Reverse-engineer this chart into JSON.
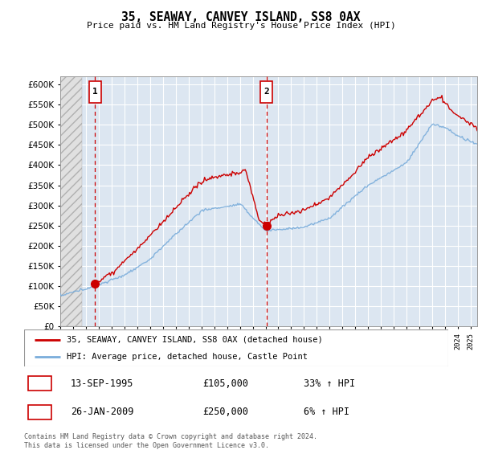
{
  "title": "35, SEAWAY, CANVEY ISLAND, SS8 0AX",
  "subtitle": "Price paid vs. HM Land Registry's House Price Index (HPI)",
  "red_label": "35, SEAWAY, CANVEY ISLAND, SS8 0AX (detached house)",
  "blue_label": "HPI: Average price, detached house, Castle Point",
  "annotation1_date": "13-SEP-1995",
  "annotation1_price": "£105,000",
  "annotation1_hpi": "33% ↑ HPI",
  "annotation2_date": "26-JAN-2009",
  "annotation2_price": "£250,000",
  "annotation2_hpi": "6% ↑ HPI",
  "footer": "Contains HM Land Registry data © Crown copyright and database right 2024.\nThis data is licensed under the Open Government Licence v3.0.",
  "ylim": [
    0,
    620000
  ],
  "yticks": [
    0,
    50000,
    100000,
    150000,
    200000,
    250000,
    300000,
    350000,
    400000,
    450000,
    500000,
    550000,
    600000
  ],
  "plot_bg": "#dce6f1",
  "grid_color": "#ffffff",
  "red_color": "#cc0000",
  "blue_color": "#7aaddb",
  "vline_color": "#cc0000",
  "sale1_x": 1995.71,
  "sale1_y": 105000,
  "sale2_x": 2009.07,
  "sale2_y": 250000,
  "xmin": 1993,
  "xmax": 2025.5,
  "hatch_end": 1994.7
}
